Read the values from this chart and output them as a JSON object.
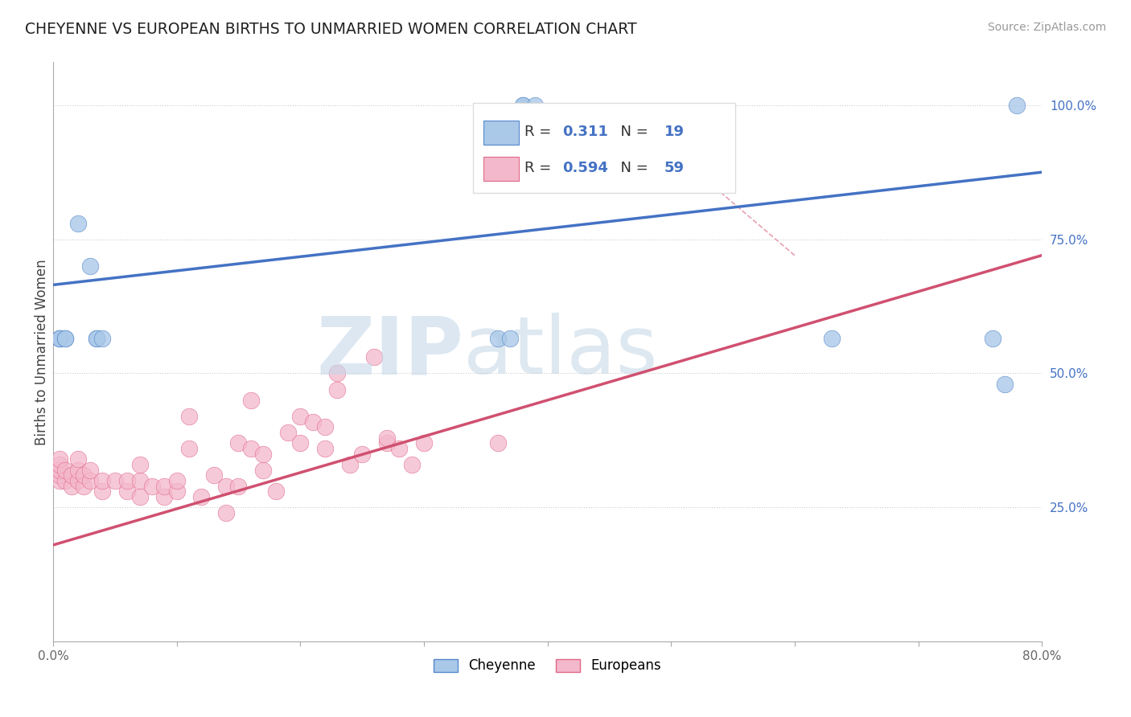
{
  "title": "CHEYENNE VS EUROPEAN BIRTHS TO UNMARRIED WOMEN CORRELATION CHART",
  "source": "Source: ZipAtlas.com",
  "ylabel": "Births to Unmarried Women",
  "xlim": [
    0.0,
    0.8
  ],
  "ylim": [
    0.0,
    1.08
  ],
  "y_tick_vals": [
    0.25,
    0.5,
    0.75,
    1.0
  ],
  "y_tick_labels_right": [
    "25.0%",
    "50.0%",
    "75.0%",
    "100.0%"
  ],
  "cheyenne_R": "0.311",
  "cheyenne_N": "19",
  "european_R": "0.594",
  "european_N": "59",
  "cheyenne_color": "#aac8e8",
  "european_color": "#f4b8cc",
  "cheyenne_edge_color": "#5588cc",
  "european_edge_color": "#e06888",
  "cheyenne_line_color": "#4472c4",
  "european_line_color": "#d05070",
  "N_color": "#4472c4",
  "R_color": "#4472c4",
  "cheyenne_line_x": [
    0.0,
    0.8
  ],
  "cheyenne_line_y": [
    0.665,
    0.875
  ],
  "european_line_x": [
    0.0,
    0.8
  ],
  "european_line_y": [
    0.18,
    0.72
  ],
  "ref_line_x": [
    0.47,
    0.6
  ],
  "ref_line_y": [
    0.975,
    0.72
  ],
  "cheyenne_points_x": [
    0.005,
    0.005,
    0.005,
    0.01,
    0.01,
    0.02,
    0.03,
    0.035,
    0.035,
    0.04,
    0.36,
    0.37,
    0.38,
    0.38,
    0.39,
    0.63,
    0.76,
    0.77,
    0.78
  ],
  "cheyenne_points_y": [
    0.565,
    0.565,
    0.565,
    0.565,
    0.565,
    0.78,
    0.7,
    0.565,
    0.565,
    0.565,
    0.565,
    0.565,
    1.0,
    1.0,
    1.0,
    0.565,
    0.565,
    0.48,
    1.0
  ],
  "european_points_x": [
    0.005,
    0.005,
    0.005,
    0.005,
    0.005,
    0.01,
    0.01,
    0.015,
    0.015,
    0.02,
    0.02,
    0.02,
    0.025,
    0.025,
    0.03,
    0.03,
    0.04,
    0.04,
    0.05,
    0.06,
    0.06,
    0.07,
    0.07,
    0.07,
    0.08,
    0.09,
    0.09,
    0.1,
    0.1,
    0.11,
    0.11,
    0.12,
    0.13,
    0.14,
    0.14,
    0.15,
    0.15,
    0.16,
    0.16,
    0.17,
    0.17,
    0.18,
    0.19,
    0.2,
    0.2,
    0.21,
    0.22,
    0.22,
    0.23,
    0.23,
    0.24,
    0.25,
    0.26,
    0.27,
    0.27,
    0.28,
    0.29,
    0.3,
    0.36
  ],
  "european_points_y": [
    0.3,
    0.31,
    0.32,
    0.33,
    0.34,
    0.3,
    0.32,
    0.29,
    0.31,
    0.3,
    0.32,
    0.34,
    0.29,
    0.31,
    0.3,
    0.32,
    0.28,
    0.3,
    0.3,
    0.28,
    0.3,
    0.27,
    0.3,
    0.33,
    0.29,
    0.27,
    0.29,
    0.28,
    0.3,
    0.36,
    0.42,
    0.27,
    0.31,
    0.24,
    0.29,
    0.29,
    0.37,
    0.36,
    0.45,
    0.32,
    0.35,
    0.28,
    0.39,
    0.37,
    0.42,
    0.41,
    0.36,
    0.4,
    0.47,
    0.5,
    0.33,
    0.35,
    0.53,
    0.37,
    0.38,
    0.36,
    0.33,
    0.37,
    0.37
  ]
}
